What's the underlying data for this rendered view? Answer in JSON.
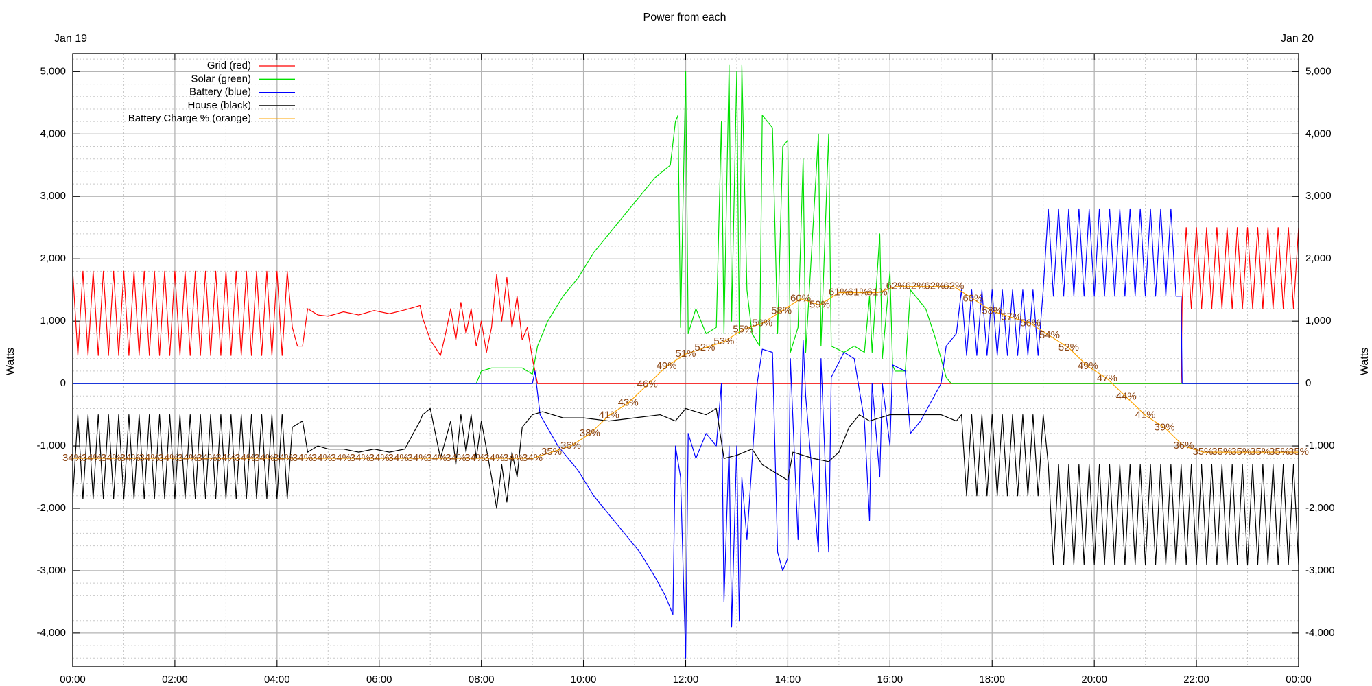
{
  "chart_data": {
    "type": "line",
    "title": "Power from each",
    "annotations": [
      "Jan 19",
      "Jan 20"
    ],
    "ylabel": "Watts",
    "y2label": "Watts",
    "xlim": [
      0,
      24
    ],
    "xticks": [
      {
        "value": 0,
        "label": "00:00"
      },
      {
        "value": 2,
        "label": "02:00"
      },
      {
        "value": 4,
        "label": "04:00"
      },
      {
        "value": 6,
        "label": "06:00"
      },
      {
        "value": 8,
        "label": "08:00"
      },
      {
        "value": 10,
        "label": "10:00"
      },
      {
        "value": 12,
        "label": "12:00"
      },
      {
        "value": 14,
        "label": "14:00"
      },
      {
        "value": 16,
        "label": "16:00"
      },
      {
        "value": 18,
        "label": "18:00"
      },
      {
        "value": 20,
        "label": "20:00"
      },
      {
        "value": 22,
        "label": "22:00"
      },
      {
        "value": 24,
        "label": "00:00"
      }
    ],
    "ylim": [
      -4540,
      5290
    ],
    "yticks": [
      {
        "value": -4000,
        "label": "-4,000"
      },
      {
        "value": -3000,
        "label": "-3,000"
      },
      {
        "value": -2000,
        "label": "-2,000"
      },
      {
        "value": -1000,
        "label": "-1,000"
      },
      0,
      {
        "value": 1000,
        "label": "1,000"
      },
      {
        "value": 2000,
        "label": "2,000"
      },
      {
        "value": 3000,
        "label": "3,000"
      },
      {
        "value": 4000,
        "label": "4,000"
      },
      {
        "value": 5000,
        "label": "5,000"
      }
    ],
    "mirror_y_axis": true,
    "y3lim": [
      0,
      100
    ],
    "grid": true,
    "minor_grid": true,
    "legend": "upper left",
    "series": [
      {
        "name": "Grid (red)",
        "color": "#ff0000",
        "x": [
          0,
          0.1,
          0.2,
          0.3,
          0.4,
          0.5,
          0.6,
          0.7,
          0.8,
          0.9,
          1,
          1.1,
          1.2,
          1.3,
          1.4,
          1.5,
          1.6,
          1.7,
          1.8,
          1.9,
          2,
          2.1,
          2.2,
          2.3,
          2.4,
          2.5,
          2.6,
          2.7,
          2.8,
          2.9,
          3,
          3.1,
          3.2,
          3.3,
          3.4,
          3.5,
          3.6,
          3.7,
          3.8,
          3.9,
          4,
          4.1,
          4.2,
          4.3,
          4.4,
          4.5,
          4.6,
          4.8,
          5,
          5.3,
          5.6,
          5.9,
          6.2,
          6.5,
          6.8,
          6.85,
          7,
          7.2,
          7.3,
          7.4,
          7.5,
          7.6,
          7.7,
          7.8,
          7.9,
          8,
          8.1,
          8.2,
          8.3,
          8.4,
          8.5,
          8.6,
          8.7,
          8.8,
          8.9,
          9,
          9.1,
          21.7,
          21.72,
          21.8,
          21.9,
          22,
          22.1,
          22.2,
          22.3,
          22.4,
          22.5,
          22.6,
          22.7,
          22.8,
          22.9,
          23,
          23.1,
          23.2,
          23.3,
          23.4,
          23.5,
          23.6,
          23.7,
          23.8,
          23.9,
          24
        ],
        "values": [
          1800,
          450,
          1800,
          450,
          1800,
          450,
          1800,
          450,
          1800,
          450,
          1800,
          450,
          1800,
          450,
          1800,
          450,
          1800,
          450,
          1800,
          450,
          1800,
          450,
          1800,
          450,
          1800,
          450,
          1800,
          450,
          1800,
          450,
          1800,
          450,
          1800,
          450,
          1800,
          450,
          1800,
          450,
          1800,
          450,
          1800,
          450,
          1800,
          900,
          600,
          600,
          1200,
          1100,
          1080,
          1150,
          1100,
          1170,
          1120,
          1180,
          1250,
          1050,
          700,
          450,
          800,
          1200,
          700,
          1300,
          800,
          1200,
          600,
          1000,
          500,
          900,
          1750,
          1000,
          1700,
          900,
          1400,
          700,
          900,
          400,
          0,
          0,
          1300,
          2500,
          1200,
          2500,
          1200,
          2500,
          1200,
          2500,
          1200,
          2500,
          1200,
          2500,
          1200,
          2500,
          1200,
          2500,
          1200,
          2500,
          1200,
          2500,
          1200,
          2500,
          1200,
          2500
        ]
      },
      {
        "name": "Solar (green)",
        "color": "#00e000",
        "x": [
          0,
          7.9,
          8,
          8.2,
          8.8,
          9,
          9.1,
          9.3,
          9.6,
          9.9,
          10.2,
          10.5,
          10.8,
          11.1,
          11.4,
          11.7,
          11.8,
          11.85,
          11.9,
          12,
          12.05,
          12.2,
          12.4,
          12.6,
          12.7,
          12.75,
          12.85,
          12.9,
          13,
          13.05,
          13.1,
          13.2,
          13.3,
          13.45,
          13.5,
          13.7,
          13.8,
          13.9,
          14,
          14.05,
          14.2,
          14.3,
          14.35,
          14.6,
          14.65,
          14.8,
          14.85,
          15.1,
          15.3,
          15.5,
          15.6,
          15.65,
          15.8,
          15.85,
          16,
          16.05,
          16.1,
          16.3,
          16.4,
          16.5,
          16.7,
          16.9,
          17.1,
          17.2,
          24
        ],
        "values": [
          0,
          0,
          200,
          250,
          250,
          150,
          600,
          1000,
          1400,
          1700,
          2100,
          2400,
          2700,
          3000,
          3300,
          3500,
          4200,
          4300,
          900,
          5000,
          800,
          1200,
          800,
          900,
          4200,
          800,
          5100,
          1000,
          5000,
          800,
          5100,
          1500,
          800,
          600,
          4300,
          4100,
          800,
          3800,
          3900,
          500,
          900,
          3600,
          500,
          4000,
          600,
          4000,
          600,
          500,
          600,
          500,
          1400,
          500,
          2400,
          400,
          1800,
          300,
          200,
          200,
          1500,
          1400,
          1200,
          700,
          100,
          0,
          0
        ]
      },
      {
        "name": "Battery (blue)",
        "color": "#0000ff",
        "x": [
          0,
          9,
          9.05,
          9.15,
          9.5,
          9.9,
          10.2,
          10.5,
          10.8,
          11.1,
          11.4,
          11.6,
          11.75,
          11.8,
          11.9,
          12,
          12.05,
          12.2,
          12.4,
          12.6,
          12.7,
          12.75,
          12.85,
          12.9,
          13,
          13.05,
          13.1,
          13.2,
          13.4,
          13.5,
          13.7,
          13.8,
          13.9,
          14,
          14.05,
          14.2,
          14.3,
          14.35,
          14.6,
          14.65,
          14.8,
          14.85,
          15.1,
          15.3,
          15.5,
          15.6,
          15.65,
          15.8,
          15.85,
          16,
          16.05,
          16.3,
          16.4,
          16.6,
          16.8,
          17,
          17.1,
          17.3,
          17.4,
          17.5,
          17.6,
          17.7,
          17.8,
          17.9,
          18,
          18.1,
          18.2,
          18.3,
          18.4,
          18.5,
          18.6,
          18.7,
          18.8,
          18.9,
          19,
          19.1,
          19.2,
          19.3,
          19.4,
          19.5,
          19.6,
          19.7,
          19.8,
          19.9,
          20,
          20.1,
          20.2,
          20.3,
          20.4,
          20.5,
          20.6,
          20.7,
          20.8,
          20.9,
          21,
          21.1,
          21.2,
          21.3,
          21.4,
          21.5,
          21.6,
          21.7,
          21.72,
          24
        ],
        "values": [
          0,
          0,
          200,
          -500,
          -1000,
          -1400,
          -1800,
          -2100,
          -2400,
          -2700,
          -3100,
          -3400,
          -3700,
          -1000,
          -1500,
          -4400,
          -800,
          -1200,
          -800,
          -1000,
          0,
          -3500,
          -1000,
          -3900,
          -1000,
          -3800,
          -1500,
          -2500,
          0,
          550,
          500,
          -2700,
          -3000,
          -2800,
          400,
          -2500,
          700,
          -200,
          -2700,
          400,
          -2700,
          100,
          500,
          400,
          -600,
          -2200,
          0,
          -1500,
          0,
          -1000,
          300,
          200,
          -800,
          -600,
          -300,
          0,
          600,
          800,
          1500,
          450,
          1500,
          450,
          1500,
          450,
          1500,
          450,
          1500,
          450,
          1500,
          450,
          1500,
          450,
          1500,
          450,
          1500,
          2800,
          1400,
          2800,
          1400,
          2800,
          1400,
          2800,
          1400,
          2800,
          1400,
          2800,
          1400,
          2800,
          1400,
          2800,
          1400,
          2800,
          1400,
          2800,
          1400,
          2800,
          1400,
          2800,
          1400,
          2800,
          1400,
          1400,
          0,
          0
        ]
      },
      {
        "name": "House (black)",
        "color": "#000000",
        "x": [
          0,
          0.1,
          0.2,
          0.3,
          0.4,
          0.5,
          0.6,
          0.7,
          0.8,
          0.9,
          1,
          1.1,
          1.2,
          1.3,
          1.4,
          1.5,
          1.6,
          1.7,
          1.8,
          1.9,
          2,
          2.1,
          2.2,
          2.3,
          2.4,
          2.5,
          2.6,
          2.7,
          2.8,
          2.9,
          3,
          3.1,
          3.2,
          3.3,
          3.4,
          3.5,
          3.6,
          3.7,
          3.8,
          3.9,
          4,
          4.1,
          4.2,
          4.3,
          4.5,
          4.6,
          4.8,
          5,
          5.3,
          5.6,
          5.9,
          6.2,
          6.5,
          6.8,
          6.85,
          7,
          7.2,
          7.4,
          7.5,
          7.6,
          7.7,
          7.8,
          7.9,
          8,
          8.2,
          8.3,
          8.4,
          8.5,
          8.6,
          8.7,
          8.8,
          9,
          9.2,
          9.6,
          10,
          10.5,
          11,
          11.5,
          11.8,
          12,
          12.4,
          12.6,
          12.75,
          13,
          13.3,
          13.5,
          13.7,
          14,
          14.1,
          14.5,
          14.8,
          15,
          15.2,
          15.4,
          15.6,
          16,
          16.5,
          17,
          17.3,
          17.4,
          17.5,
          17.6,
          17.7,
          17.8,
          17.9,
          18,
          18.1,
          18.2,
          18.3,
          18.4,
          18.5,
          18.6,
          18.7,
          18.8,
          18.9,
          19,
          19.1,
          19.2,
          19.3,
          19.4,
          19.5,
          19.6,
          19.7,
          19.8,
          19.9,
          20,
          20.1,
          20.2,
          20.3,
          20.4,
          20.5,
          20.6,
          20.7,
          20.8,
          20.9,
          21,
          21.1,
          21.2,
          21.3,
          21.4,
          21.5,
          21.6,
          21.7,
          21.8,
          21.9,
          22,
          22.1,
          22.2,
          22.3,
          22.4,
          22.5,
          22.6,
          22.7,
          22.8,
          22.9,
          23,
          23.1,
          23.2,
          23.3,
          23.4,
          23.5,
          23.6,
          23.7,
          23.8,
          23.9,
          24
        ],
        "values": [
          -1850,
          -500,
          -1850,
          -500,
          -1850,
          -500,
          -1850,
          -500,
          -1850,
          -500,
          -1850,
          -500,
          -1850,
          -500,
          -1850,
          -500,
          -1850,
          -500,
          -1850,
          -500,
          -1850,
          -500,
          -1850,
          -500,
          -1850,
          -500,
          -1850,
          -500,
          -1850,
          -500,
          -1850,
          -500,
          -1850,
          -500,
          -1850,
          -500,
          -1850,
          -500,
          -1850,
          -500,
          -1850,
          -500,
          -1850,
          -700,
          -600,
          -1100,
          -1000,
          -1050,
          -1050,
          -1100,
          -1050,
          -1100,
          -1050,
          -600,
          -500,
          -400,
          -1200,
          -600,
          -1300,
          -500,
          -1100,
          -500,
          -1200,
          -600,
          -1500,
          -2000,
          -1300,
          -1900,
          -1100,
          -1500,
          -700,
          -500,
          -450,
          -550,
          -550,
          -600,
          -550,
          -500,
          -600,
          -400,
          -500,
          -400,
          -1200,
          -1150,
          -1050,
          -1300,
          -1400,
          -1550,
          -1100,
          -1200,
          -1250,
          -1100,
          -700,
          -500,
          -600,
          -500,
          -500,
          -500,
          -600,
          -500,
          -1800,
          -500,
          -1800,
          -500,
          -1800,
          -500,
          -1800,
          -500,
          -1800,
          -500,
          -1800,
          -500,
          -1800,
          -500,
          -1800,
          -500,
          -1300,
          -2900,
          -1300,
          -2900,
          -1300,
          -2900,
          -1300,
          -2900,
          -1300,
          -2900,
          -1300,
          -2900,
          -1300,
          -2900,
          -1300,
          -2900,
          -1300,
          -2900,
          -1300,
          -2900,
          -1300,
          -2900,
          -1300,
          -2900,
          -1300,
          -2900,
          -1300,
          -2900,
          -1300,
          -2900,
          -1300,
          -2900,
          -1300,
          -2900,
          -1300,
          -2900,
          -1300,
          -2900,
          -1300,
          -2900,
          -1300,
          -2900,
          -1300,
          -2900,
          -1300,
          -2900,
          -1300,
          -2900,
          -1300,
          -2900
        ]
      },
      {
        "name": "Battery Charge % (orange)",
        "color": "#ffa500",
        "label_color": "#8b4513",
        "axis": "y3",
        "x": [
          0,
          0.375,
          0.75,
          1.125,
          1.5,
          1.875,
          2.25,
          2.625,
          3,
          3.375,
          3.75,
          4.125,
          4.5,
          4.875,
          5.25,
          5.625,
          6,
          6.375,
          6.75,
          7.125,
          7.5,
          7.875,
          8.25,
          8.625,
          9,
          9.375,
          9.75,
          10.125,
          10.5,
          10.875,
          11.25,
          11.625,
          12,
          12.375,
          12.75,
          13.125,
          13.5,
          13.875,
          14.25,
          14.625,
          15,
          15.375,
          15.75,
          16.125,
          16.5,
          16.875,
          17.25,
          17.625,
          18,
          18.375,
          18.75,
          19.125,
          19.5,
          19.875,
          20.25,
          20.625,
          21,
          21.375,
          21.75,
          22.125,
          22.5,
          22.875,
          23.25,
          23.625,
          24
        ],
        "values": [
          34,
          34,
          34,
          34,
          34,
          34,
          34,
          34,
          34,
          34,
          34,
          34,
          34,
          34,
          34,
          34,
          34,
          34,
          34,
          34,
          34,
          34,
          34,
          34,
          34,
          35,
          36,
          38,
          41,
          43,
          46,
          49,
          51,
          52,
          53,
          55,
          56,
          58,
          60,
          59,
          61,
          61,
          61,
          62,
          62,
          62,
          62,
          60,
          58,
          57,
          56,
          54,
          52,
          49,
          47,
          44,
          41,
          39,
          36,
          35,
          35,
          35,
          35,
          35,
          35
        ],
        "value_labels": [
          "34%",
          "34%",
          "34%",
          "34%",
          "34%",
          "34%",
          "34%",
          "34%",
          "34%",
          "34%",
          "34%",
          "34%",
          "34%",
          "34%",
          "34%",
          "34%",
          "34%",
          "34%",
          "34%",
          "34%",
          "34%",
          "34%",
          "34%",
          "34%",
          "34%",
          "35%",
          "36%",
          "38%",
          "41%",
          "43%",
          "46%",
          "49%",
          "51%",
          "52%",
          "53%",
          "55%",
          "56%",
          "58%",
          "60%",
          "59%",
          "61%",
          "61%",
          "61%",
          "62%",
          "62%",
          "62%",
          "62%",
          "60%",
          "58%",
          "57%",
          "56%",
          "54%",
          "52%",
          "49%",
          "47%",
          "44%",
          "41%",
          "39%",
          "36%",
          "35%",
          "35%",
          "35%",
          "35%",
          "35%",
          "35%"
        ]
      }
    ]
  }
}
